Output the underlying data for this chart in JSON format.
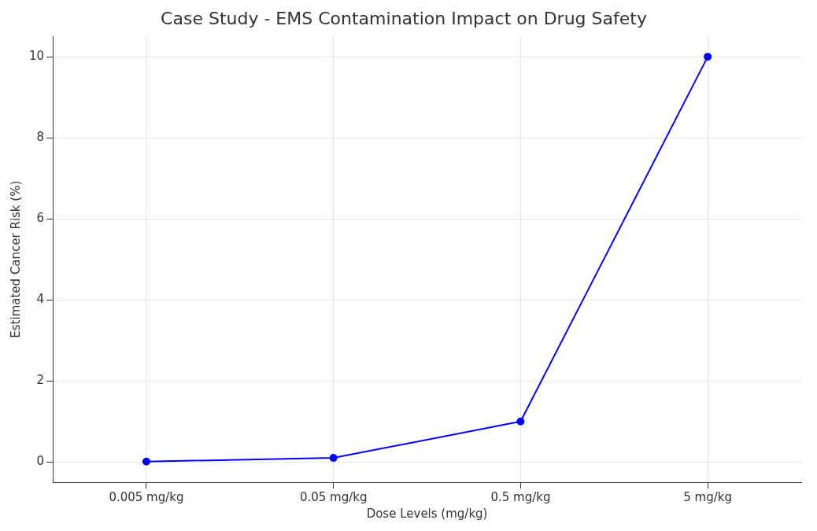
{
  "chart_data": {
    "type": "line",
    "title": "Case Study - EMS Contamination Impact on Drug Safety",
    "xlabel": "Dose Levels (mg/kg)",
    "ylabel": "Estimated Cancer Risk (%)",
    "categories": [
      "0.005 mg/kg",
      "0.05 mg/kg",
      "0.5 mg/kg",
      "5 mg/kg"
    ],
    "series": [
      {
        "color": "#0000ff",
        "values": [
          0.01,
          0.1,
          1,
          10
        ]
      }
    ],
    "ylim": [
      -0.5,
      10.5
    ],
    "yticks": [
      0,
      2,
      4,
      6,
      8,
      10
    ],
    "grid": true,
    "marker": "circle",
    "line_style": "solid"
  }
}
